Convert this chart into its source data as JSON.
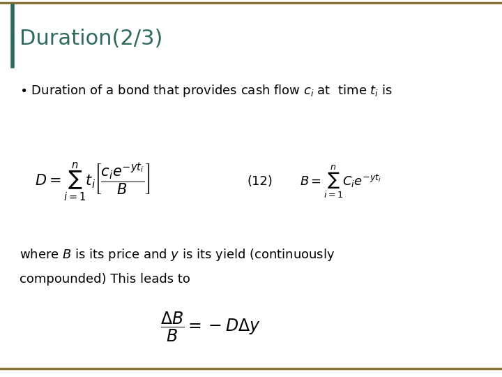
{
  "title": "Duration(2/3)",
  "title_color": "#2E6B5E",
  "title_fontsize": 22,
  "background_color": "#FFFFFF",
  "border_color": "#8B7536",
  "eq1_latex": "$D = \\sum_{i=1}^{n} t_i \\left[ \\dfrac{c_i e^{-yt_i}}{B} \\right]$",
  "eq1_label": "(12)",
  "eq2_latex": "$B = \\sum_{i=1}^{n} C_i e^{-yt_i}$",
  "eq3_latex": "$\\dfrac{\\Delta B}{B} = -D\\Delta y$",
  "text_fontsize": 13,
  "eq1_fontsize": 15,
  "eq2_fontsize": 13,
  "eq3_fontsize": 17,
  "label_fontsize": 13
}
